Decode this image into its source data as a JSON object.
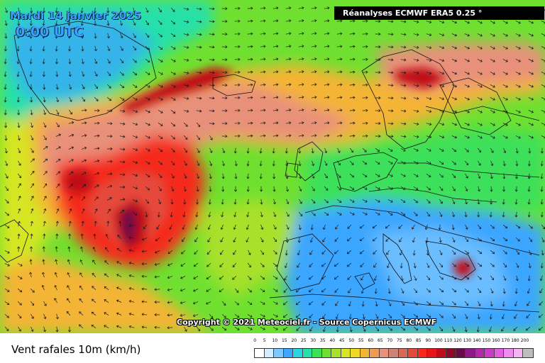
{
  "header": {
    "date": "Mardi 14 janvier 2025",
    "time": "0:00 UTC",
    "source": "Réanalyses ECMWF ERA5 0.25 °"
  },
  "copyright": "Copyright © 2021 Meteociel.fr - Source Copernicus ECMWF",
  "legend": {
    "title": "Vent rafales 10m (km/h)",
    "stops": [
      {
        "label": "0",
        "color": "#ffffff"
      },
      {
        "label": "5",
        "color": "#d4ecff"
      },
      {
        "label": "10",
        "color": "#7fc7ff"
      },
      {
        "label": "15",
        "color": "#3aa6ff"
      },
      {
        "label": "20",
        "color": "#2ad4e0"
      },
      {
        "label": "25",
        "color": "#25e0a8"
      },
      {
        "label": "30",
        "color": "#3ee05a"
      },
      {
        "label": "35",
        "color": "#6fe030"
      },
      {
        "label": "40",
        "color": "#a8e02a"
      },
      {
        "label": "45",
        "color": "#d6e624"
      },
      {
        "label": "50",
        "color": "#f0d828"
      },
      {
        "label": "55",
        "color": "#f4b434"
      },
      {
        "label": "60",
        "color": "#f29a52"
      },
      {
        "label": "65",
        "color": "#e8907a"
      },
      {
        "label": "70",
        "color": "#cc8478"
      },
      {
        "label": "75",
        "color": "#d66a5a"
      },
      {
        "label": "80",
        "color": "#e4483a"
      },
      {
        "label": "85",
        "color": "#f42a1e"
      },
      {
        "label": "90",
        "color": "#e8141a"
      },
      {
        "label": "100",
        "color": "#c00c18"
      },
      {
        "label": "110",
        "color": "#8a0a2a"
      },
      {
        "label": "120",
        "color": "#6a0a46"
      },
      {
        "label": "130",
        "color": "#8a1a86"
      },
      {
        "label": "140",
        "color": "#b02aa8"
      },
      {
        "label": "150",
        "color": "#cc3ac8"
      },
      {
        "label": "160",
        "color": "#e060e0"
      },
      {
        "label": "170",
        "color": "#ec8cec"
      },
      {
        "label": "180",
        "color": "#f4b4f4"
      },
      {
        "label": "200",
        "color": "#bdbdbd"
      }
    ]
  },
  "map_colors": {
    "land_low": "#2ad4e0",
    "sea_mid": "#6fe030",
    "yellow": "#d6e624",
    "orange": "#f4b434",
    "salmon": "#e8907a",
    "red": "#f42a1e",
    "darkred": "#c00c18",
    "purple": "#6a0a46",
    "blue": "#3aa6ff",
    "arrow": "#1a1a1a",
    "border": "#111111"
  }
}
